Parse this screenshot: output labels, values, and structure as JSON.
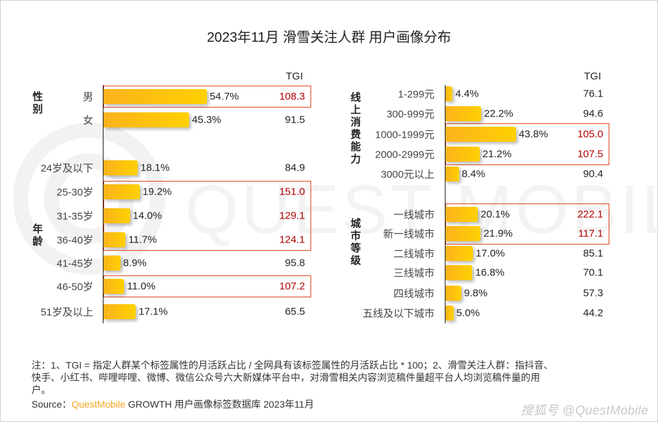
{
  "title": "2023年11月 滑雪关注人群 用户画像分布",
  "tgi_header": "TGI",
  "watermark": "QUEST MOBILE",
  "chart_data": {
    "type": "bar",
    "title": "2023年11月 滑雪关注人群 用户画像分布",
    "orientation": "horizontal",
    "unit": "%",
    "colors": {
      "bar_start": "#fbb31c",
      "bar_end": "#ffd000",
      "highlight_box": "#e04a1f",
      "highlight_text": "#b00000"
    },
    "panels": [
      {
        "name": "left",
        "xlim": [
          0,
          60
        ],
        "groups": [
          {
            "label": "性别",
            "categories": [
              "男",
              "女"
            ],
            "values": [
              54.7,
              45.3
            ],
            "value_labels": [
              "54.7%",
              "45.3%"
            ],
            "tgi": [
              "108.3",
              "91.5"
            ],
            "highlighted": [
              true,
              false
            ]
          },
          {
            "label": "年龄",
            "categories": [
              "24岁及以下",
              "25-30岁",
              "31-35岁",
              "36-40岁",
              "41-45岁",
              "46-50岁",
              "51岁及以上"
            ],
            "values": [
              18.1,
              19.2,
              14.0,
              11.7,
              8.9,
              11.0,
              17.1
            ],
            "value_labels": [
              "18.1%",
              "19.2%",
              "14.0%",
              "11.7%",
              "8.9%",
              "11.0%",
              "17.1%"
            ],
            "tgi": [
              "84.9",
              "151.0",
              "129.1",
              "124.1",
              "95.8",
              "107.2",
              "65.5"
            ],
            "highlighted": [
              false,
              true,
              true,
              true,
              false,
              true,
              false
            ]
          }
        ]
      },
      {
        "name": "right",
        "xlim": [
          0,
          60
        ],
        "groups": [
          {
            "label": "线上消费能力",
            "categories": [
              "1-299元",
              "300-999元",
              "1000-1999元",
              "2000-2999元",
              "3000元以上"
            ],
            "values": [
              4.4,
              22.2,
              43.8,
              21.2,
              8.4
            ],
            "value_labels": [
              "4.4%",
              "22.2%",
              "43.8%",
              "21.2%",
              "8.4%"
            ],
            "tgi": [
              "76.1",
              "94.6",
              "105.0",
              "107.5",
              "90.4"
            ],
            "highlighted": [
              false,
              false,
              true,
              true,
              false
            ]
          },
          {
            "label": "城市等级",
            "categories": [
              "一线城市",
              "新一线城市",
              "二线城市",
              "三线城市",
              "四线城市",
              "五线及以下城市"
            ],
            "values": [
              20.1,
              21.9,
              17.0,
              16.8,
              9.8,
              5.0
            ],
            "value_labels": [
              "20.1%",
              "21.9%",
              "17.0%",
              "16.8%",
              "9.8%",
              "5.0%"
            ],
            "tgi": [
              "222.1",
              "117.1",
              "85.1",
              "70.1",
              "57.3",
              "44.2"
            ],
            "highlighted": [
              true,
              true,
              false,
              false,
              false,
              false
            ]
          }
        ]
      }
    ]
  },
  "footer": {
    "note_line1": "注：1、TGI = 指定人群某个标签属性的月活跃占比 / 全网具有该标签属性的月活跃占比 * 100；2、滑雪关注人群：指抖音、",
    "note_line2": "快手、小红书、哔哩哔哩、微博、微信公众号六大新媒体平台中，对滑雪相关内容浏览稿件量超平台人均浏览稿件量的用",
    "note_line3": "户。",
    "source_prefix": "Source：",
    "source_brand": "QuestMobile",
    "source_rest": " GROWTH 用户画像标签数据库 2023年11月",
    "credit": "搜狐号 @QuestMobile"
  }
}
